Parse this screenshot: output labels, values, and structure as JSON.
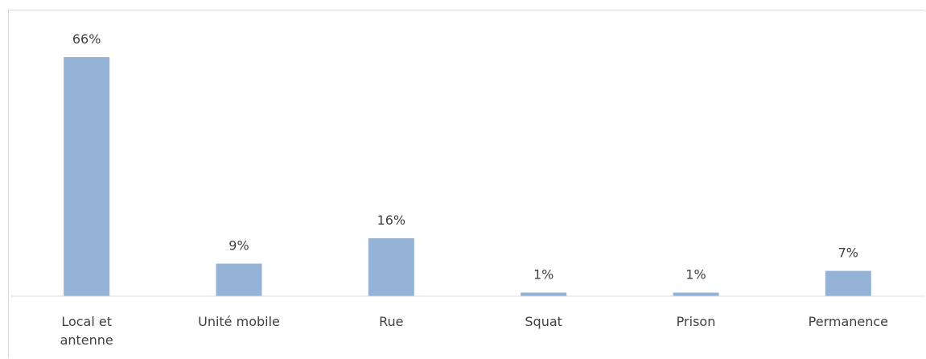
{
  "chart_data": {
    "type": "bar",
    "categories": [
      "Local et antenne",
      "Unité mobile",
      "Rue",
      "Squat",
      "Prison",
      "Permanence"
    ],
    "values": [
      66,
      9,
      16,
      1,
      1,
      7
    ],
    "value_labels": [
      "66%",
      "9%",
      "16%",
      "1%",
      "1%",
      "7%"
    ],
    "color": "#95b3d7",
    "ylim": [
      0,
      72
    ]
  }
}
